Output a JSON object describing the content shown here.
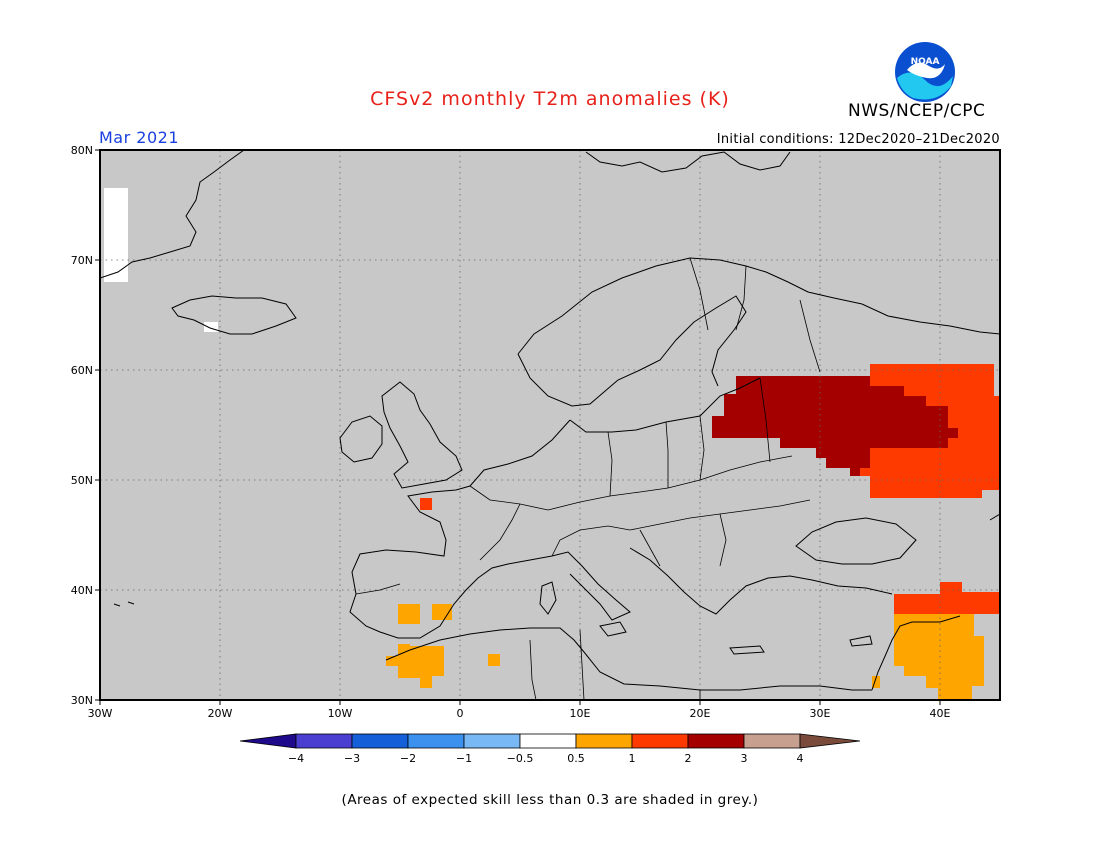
{
  "header": {
    "title": "CFSv2 monthly T2m anomalies (K)",
    "agency": "NWS/NCEP/CPC",
    "logo_text": "NOAA",
    "month": "Mar 2021",
    "initial_conditions": "Initial conditions: 12Dec2020–21Dec2020"
  },
  "map": {
    "extent": {
      "lon": [
        -30,
        45
      ],
      "lat": [
        30,
        80
      ]
    },
    "background_color": "#c8c8c8",
    "lat_labels": [
      "80N",
      "70N",
      "60N",
      "50N",
      "40N",
      "30N"
    ],
    "lon_labels": [
      "30W",
      "20W",
      "10W",
      "0",
      "10E",
      "20E",
      "30E",
      "40E"
    ],
    "grid": "dotted"
  },
  "colorbar": {
    "tick_labels": [
      "−4",
      "−3",
      "−2",
      "−1",
      "−0.5",
      "0.5",
      "1",
      "2",
      "3",
      "4"
    ],
    "colors": [
      "#1f0a8c",
      "#4a3fd0",
      "#1560d8",
      "#3c90ee",
      "#78b8f4",
      "#ffffff",
      "#ffa500",
      "#ff3a00",
      "#a50000",
      "#c8a090",
      "#7a4a3a"
    ]
  },
  "footnote": "(Areas of expected skill less than 0.3 are shaded in grey.)"
}
